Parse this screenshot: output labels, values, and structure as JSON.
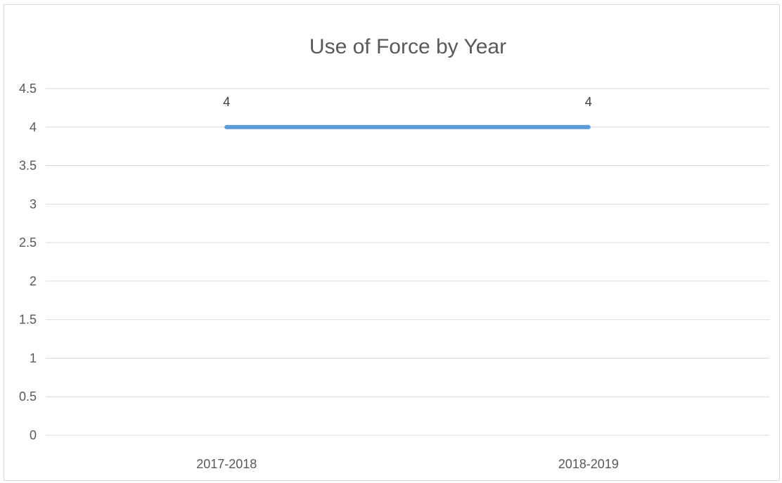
{
  "chart_data": {
    "type": "line",
    "title": "Use of Force by Year",
    "categories": [
      "2017-2018",
      "2018-2019"
    ],
    "series": [
      {
        "values": [
          4,
          4
        ],
        "color": "#5b9bd5",
        "data_labels": [
          "4",
          "4"
        ]
      }
    ],
    "ylim": [
      0,
      4.5
    ],
    "yticks": [
      "0",
      "0.5",
      "1",
      "1.5",
      "2",
      "2.5",
      "3",
      "3.5",
      "4",
      "4.5"
    ],
    "grid": true,
    "legend": "none"
  }
}
